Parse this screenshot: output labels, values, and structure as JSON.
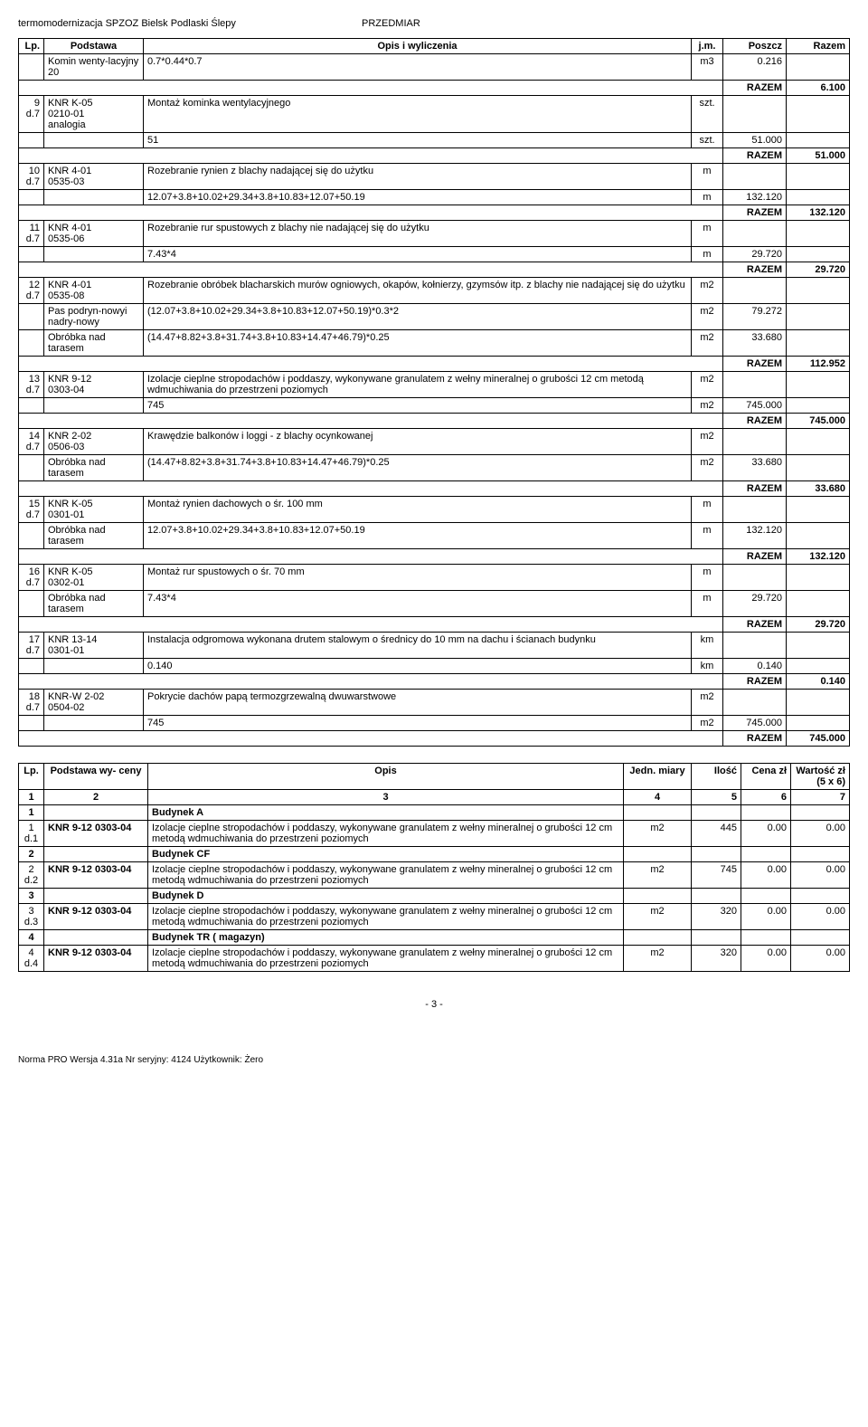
{
  "header": {
    "left": "termomodernizacja SPZOZ Bielsk Podlaski Ślepy",
    "right": "PRZEDMIAR"
  },
  "table1": {
    "headers": [
      "Lp.",
      "Podstawa",
      "Opis i wyliczenia",
      "j.m.",
      "Poszcz",
      "Razem"
    ],
    "rows": [
      {
        "lp": "",
        "pod": "Komin wenty-lacyjny 20",
        "opis": "0.7*0.44*0.7",
        "jm": "m3",
        "poszcz": "0.216",
        "razem": ""
      },
      {
        "razem_total": "6.100",
        "label": "RAZEM"
      },
      {
        "lp": "9\nd.7",
        "pod": "KNR K-05\n0210-01\nanalogia",
        "opis": "Montaż kominka wentylacyjnego",
        "jm": "szt.",
        "poszcz": "",
        "razem": ""
      },
      {
        "lp": "",
        "pod": "",
        "opis": "51",
        "jm": "szt.",
        "poszcz": "51.000",
        "razem": ""
      },
      {
        "razem_total": "51.000",
        "label": "RAZEM"
      },
      {
        "lp": "10\nd.7",
        "pod": "KNR 4-01\n0535-03",
        "opis": "Rozebranie rynien z blachy nadającej się do użytku",
        "jm": "m",
        "poszcz": "",
        "razem": ""
      },
      {
        "lp": "",
        "pod": "",
        "opis": "12.07+3.8+10.02+29.34+3.8+10.83+12.07+50.19",
        "jm": "m",
        "poszcz": "132.120",
        "razem": ""
      },
      {
        "razem_total": "132.120",
        "label": "RAZEM"
      },
      {
        "lp": "11\nd.7",
        "pod": "KNR 4-01\n0535-06",
        "opis": "Rozebranie rur spustowych z blachy nie nadającej się do użytku",
        "jm": "m",
        "poszcz": "",
        "razem": ""
      },
      {
        "lp": "",
        "pod": "",
        "opis": "7.43*4",
        "jm": "m",
        "poszcz": "29.720",
        "razem": ""
      },
      {
        "razem_total": "29.720",
        "label": "RAZEM"
      },
      {
        "lp": "12\nd.7",
        "pod": "KNR 4-01\n0535-08",
        "opis": "Rozebranie obróbek blacharskich murów ogniowych, okapów, kołnierzy, gzymsów itp. z blachy nie nadającej się do użytku",
        "jm": "m2",
        "poszcz": "",
        "razem": ""
      },
      {
        "lp": "",
        "pod": "Pas podryn-nowyi nadry-nowy",
        "opis": "(12.07+3.8+10.02+29.34+3.8+10.83+12.07+50.19)*0.3*2",
        "jm": "m2",
        "poszcz": "79.272",
        "razem": ""
      },
      {
        "lp": "",
        "pod": "Obróbka nad tarasem",
        "opis": "(14.47+8.82+3.8+31.74+3.8+10.83+14.47+46.79)*0.25",
        "jm": "m2",
        "poszcz": "33.680",
        "razem": ""
      },
      {
        "razem_total": "112.952",
        "label": "RAZEM"
      },
      {
        "lp": "13\nd.7",
        "pod": "KNR 9-12\n0303-04",
        "opis": "Izolacje cieplne stropodachów i poddaszy, wykonywane granulatem z wełny mineralnej o grubości 12 cm metodą wdmuchiwania do przestrzeni poziomych",
        "jm": "m2",
        "poszcz": "",
        "razem": ""
      },
      {
        "lp": "",
        "pod": "",
        "opis": "745",
        "jm": "m2",
        "poszcz": "745.000",
        "razem": ""
      },
      {
        "razem_total": "745.000",
        "label": "RAZEM"
      },
      {
        "lp": "14\nd.7",
        "pod": "KNR 2-02\n0506-03",
        "opis": "Krawędzie balkonów i loggi - z blachy ocynkowanej",
        "jm": "m2",
        "poszcz": "",
        "razem": ""
      },
      {
        "lp": "",
        "pod": "Obróbka nad tarasem",
        "opis": "(14.47+8.82+3.8+31.74+3.8+10.83+14.47+46.79)*0.25",
        "jm": "m2",
        "poszcz": "33.680",
        "razem": ""
      },
      {
        "razem_total": "33.680",
        "label": "RAZEM"
      },
      {
        "lp": "15\nd.7",
        "pod": "KNR K-05\n0301-01",
        "opis": "Montaż rynien dachowych o śr. 100 mm",
        "jm": "m",
        "poszcz": "",
        "razem": ""
      },
      {
        "lp": "",
        "pod": "Obróbka nad tarasem",
        "opis": "12.07+3.8+10.02+29.34+3.8+10.83+12.07+50.19",
        "jm": "m",
        "poszcz": "132.120",
        "razem": ""
      },
      {
        "razem_total": "132.120",
        "label": "RAZEM"
      },
      {
        "lp": "16\nd.7",
        "pod": "KNR K-05\n0302-01",
        "opis": "Montaż rur spustowych o śr. 70 mm",
        "jm": "m",
        "poszcz": "",
        "razem": ""
      },
      {
        "lp": "",
        "pod": "Obróbka nad tarasem",
        "opis": "7.43*4",
        "jm": "m",
        "poszcz": "29.720",
        "razem": ""
      },
      {
        "razem_total": "29.720",
        "label": "RAZEM"
      },
      {
        "lp": "17\nd.7",
        "pod": "KNR 13-14\n0301-01",
        "opis": "Instalacja odgromowa wykonana drutem stalowym o średnicy do 10 mm na dachu i ścianach budynku",
        "jm": "km",
        "poszcz": "",
        "razem": ""
      },
      {
        "lp": "",
        "pod": "",
        "opis": "0.140",
        "jm": "km",
        "poszcz": "0.140",
        "razem": ""
      },
      {
        "razem_total": "0.140",
        "label": "RAZEM"
      },
      {
        "lp": "18\nd.7",
        "pod": "KNR-W 2-02\n0504-02",
        "opis": "Pokrycie dachów papą termozgrzewalną dwuwarstwowe",
        "jm": "m2",
        "poszcz": "",
        "razem": ""
      },
      {
        "lp": "",
        "pod": "",
        "opis": "745",
        "jm": "m2",
        "poszcz": "745.000",
        "razem": ""
      },
      {
        "razem_total": "745.000",
        "label": "RAZEM"
      }
    ]
  },
  "table2": {
    "headers": [
      "Lp.",
      "Podstawa wy-\nceny",
      "Opis",
      "Jedn. miary",
      "Ilość",
      "Cena\nzł",
      "Wartość\nzł\n(5 x 6)"
    ],
    "numrow": [
      "1",
      "2",
      "3",
      "4",
      "5",
      "6",
      "7"
    ],
    "sections": [
      {
        "lp": "1",
        "title": "Budynek A"
      },
      {
        "lp": "1\nd.1",
        "pod": "KNR 9-12 0303-04",
        "opis": "Izolacje cieplne stropodachów i poddaszy, wykonywane granulatem z wełny mineralnej o grubości 12 cm metodą wdmuchiwania do przestrzeni poziomych",
        "jedn": "m2",
        "ilosc": "445",
        "cena": "0.00",
        "wart": "0.00"
      },
      {
        "lp": "2",
        "title": "Budynek CF"
      },
      {
        "lp": "2\nd.2",
        "pod": "KNR 9-12 0303-04",
        "opis": "Izolacje cieplne stropodachów i poddaszy, wykonywane granulatem z wełny mineralnej o grubości 12 cm metodą wdmuchiwania do przestrzeni poziomych",
        "jedn": "m2",
        "ilosc": "745",
        "cena": "0.00",
        "wart": "0.00"
      },
      {
        "lp": "3",
        "title": "Budynek D"
      },
      {
        "lp": "3\nd.3",
        "pod": "KNR 9-12 0303-04",
        "opis": "Izolacje cieplne stropodachów i poddaszy, wykonywane granulatem z wełny mineralnej o grubości 12 cm metodą wdmuchiwania do przestrzeni poziomych",
        "jedn": "m2",
        "ilosc": "320",
        "cena": "0.00",
        "wart": "0.00"
      },
      {
        "lp": "4",
        "title": "Budynek TR ( magazyn)"
      },
      {
        "lp": "4\nd.4",
        "pod": "KNR 9-12 0303-04",
        "opis": "Izolacje cieplne stropodachów i poddaszy, wykonywane granulatem z wełny mineralnej o grubości 12 cm metodą wdmuchiwania do przestrzeni poziomych",
        "jedn": "m2",
        "ilosc": "320",
        "cena": "0.00",
        "wart": "0.00"
      }
    ]
  },
  "pagenum": "- 3 -",
  "footer": "Norma PRO Wersja 4.31a Nr seryjny: 4124 Użytkownik: Żero"
}
